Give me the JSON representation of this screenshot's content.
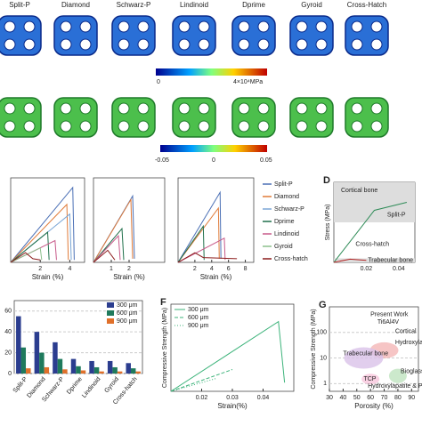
{
  "structures": [
    "Split-P",
    "Diamond",
    "Schwarz-P",
    "Lindinoid",
    "Dprime",
    "Gyroid",
    "Cross-Hatch"
  ],
  "colorbar_stress": {
    "labels": [
      "0",
      "4×10⁴MPa"
    ]
  },
  "colorbar_strain": {
    "labels": [
      "-0.05",
      "0",
      "0.05"
    ]
  },
  "chart_data": [
    {
      "type": "line",
      "xlabel": "Strain (%)",
      "xlim": [
        0,
        5
      ],
      "ylim": [
        0,
        70
      ],
      "xticks": [
        2,
        4
      ],
      "series": [
        {
          "name": "Split-P",
          "color": "#4a6fb5",
          "dash": "solid",
          "x": [
            0,
            4.2,
            4.3
          ],
          "values": [
            0,
            62,
            2
          ]
        },
        {
          "name": "Diamond",
          "color": "#e07b39",
          "dash": "solid",
          "x": [
            0,
            3.8,
            3.9
          ],
          "values": [
            0,
            48,
            2
          ]
        },
        {
          "name": "Schwarz-P",
          "color": "#7aa6d6",
          "dash": "solid",
          "x": [
            0,
            4,
            4.1
          ],
          "values": [
            0,
            40,
            2
          ]
        },
        {
          "name": "Dprime",
          "color": "#1f6f4a",
          "dash": "solid",
          "x": [
            0,
            2.5,
            2.6
          ],
          "values": [
            0,
            25,
            2
          ]
        },
        {
          "name": "Lindinoid",
          "color": "#c85a8a",
          "dash": "solid",
          "x": [
            0,
            3,
            3.1
          ],
          "values": [
            0,
            18,
            2
          ]
        },
        {
          "name": "Gyroid",
          "color": "#8cc08c",
          "dash": "solid",
          "x": [
            0,
            2,
            2.1
          ],
          "values": [
            0,
            12,
            2
          ]
        },
        {
          "name": "Cross-hatch",
          "color": "#8b1a1a",
          "dash": "solid",
          "x": [
            0,
            1,
            1.5,
            2
          ],
          "values": [
            0,
            8,
            3,
            2
          ]
        }
      ]
    },
    {
      "type": "line",
      "xlabel": "Strain (%)",
      "xlim": [
        0,
        4
      ],
      "ylim": [
        0,
        70
      ],
      "xticks": [
        1,
        2
      ],
      "series": [
        {
          "color": "#4a6fb5",
          "dash": "solid",
          "x": [
            0,
            2.2,
            2.3
          ],
          "values": [
            0,
            55,
            3
          ]
        },
        {
          "color": "#e07b39",
          "dash": "solid",
          "x": [
            0,
            2.1,
            2.2
          ],
          "values": [
            0,
            52,
            3
          ]
        },
        {
          "color": "#1f6f4a",
          "dash": "solid",
          "x": [
            0,
            1.6,
            1.7
          ],
          "values": [
            0,
            28,
            2
          ]
        },
        {
          "color": "#c85a8a",
          "dash": "solid",
          "x": [
            0,
            1.4,
            1.5
          ],
          "values": [
            0,
            22,
            2
          ]
        },
        {
          "color": "#8b1a1a",
          "dash": "solid",
          "x": [
            0,
            0.8,
            1.2
          ],
          "values": [
            0,
            10,
            2
          ]
        }
      ]
    },
    {
      "type": "line",
      "xlabel": "Strain (%)",
      "xlim": [
        0,
        9
      ],
      "ylim": [
        0,
        70
      ],
      "xticks": [
        2,
        4,
        6,
        8
      ],
      "series": [
        {
          "color": "#4a6fb5",
          "dash": "solid",
          "x": [
            0,
            5,
            5.1
          ],
          "values": [
            0,
            58,
            3
          ]
        },
        {
          "color": "#e07b39",
          "dash": "solid",
          "x": [
            0,
            4.8,
            4.9
          ],
          "values": [
            0,
            45,
            3
          ]
        },
        {
          "color": "#1f6f4a",
          "dash": "solid",
          "x": [
            0,
            3,
            3.1
          ],
          "values": [
            0,
            30,
            2
          ]
        },
        {
          "color": "#c85a8a",
          "dash": "solid",
          "x": [
            0,
            5.5,
            5.6
          ],
          "values": [
            0,
            20,
            2
          ]
        },
        {
          "color": "#8b1a1a",
          "dash": "solid",
          "x": [
            0,
            2,
            3,
            7
          ],
          "values": [
            0,
            8,
            4,
            3
          ]
        }
      ]
    },
    {
      "type": "line",
      "label": "D",
      "ylabel": "Stress (MPa)",
      "xlim": [
        0,
        0.05
      ],
      "ylim": [
        0,
        200
      ],
      "xticks": [
        0.02,
        0.04
      ],
      "annotations": [
        "Cortical bone",
        "Trabecular bone"
      ],
      "series": [
        {
          "name": "Split-P",
          "color": "#2e8b57",
          "dash": "solid",
          "x": [
            0,
            0.025,
            0.045
          ],
          "values": [
            0,
            130,
            150
          ]
        },
        {
          "name": "Cross-hatch",
          "color": "#b22222",
          "dash": "solid",
          "x": [
            0,
            0.01,
            0.02
          ],
          "values": [
            0,
            8,
            5
          ]
        }
      ]
    },
    {
      "type": "bar",
      "categories": [
        "Split-P",
        "Diamond",
        "Schwarz-P",
        "Dprime",
        "Lindinoid",
        "Gyroid",
        "Cross-hatch"
      ],
      "ylim": [
        0,
        70
      ],
      "yticks": [
        0,
        20,
        40,
        60
      ],
      "series": [
        {
          "name": "300 μm",
          "color": "#2b3d8f",
          "values": [
            55,
            40,
            30,
            14,
            12,
            12,
            10
          ]
        },
        {
          "name": "600 μm",
          "color": "#1f7a5c",
          "values": [
            25,
            20,
            14,
            7,
            6,
            6,
            5
          ]
        },
        {
          "name": "900 μm",
          "color": "#e0702a",
          "values": [
            5,
            6,
            4,
            3,
            2,
            2,
            2
          ]
        }
      ]
    },
    {
      "type": "line",
      "label": "F",
      "xlabel": "Strain(%)",
      "ylabel": "Compressive Strength (MPa)",
      "xlim": [
        0.01,
        0.05
      ],
      "ylim": [
        0,
        200
      ],
      "xticks": [
        0.02,
        0.03,
        0.04
      ],
      "series": [
        {
          "name": "300 μm",
          "color": "#3cb37a",
          "dash": "solid",
          "x": [
            0.01,
            0.045,
            0.047
          ],
          "values": [
            0,
            160,
            20
          ]
        },
        {
          "name": "600 μm",
          "color": "#3cb37a",
          "dash": "dashed",
          "x": [
            0.01,
            0.03
          ],
          "values": [
            0,
            50
          ]
        },
        {
          "name": "900 μm",
          "color": "#3cb37a",
          "dash": "dotted",
          "x": [
            0.01,
            0.025
          ],
          "values": [
            0,
            30
          ]
        }
      ]
    },
    {
      "type": "scatter",
      "label": "G",
      "xlabel": "Porosity (%)",
      "ylabel": "Compressive Strength (MPa)",
      "log_y": true,
      "xlim": [
        30,
        95
      ],
      "ylim": [
        0.5,
        1000
      ],
      "xticks": [
        30,
        40,
        50,
        60,
        70,
        80,
        90
      ],
      "yticks": [
        1,
        10,
        100
      ],
      "annotations": [
        "Present Work",
        "Ti6Al4V",
        "Cortical",
        "Hydroxyla",
        "Trabecular bone",
        "TCP",
        "Bioglasses",
        "Hydroxylapatite & PCL"
      ]
    }
  ]
}
